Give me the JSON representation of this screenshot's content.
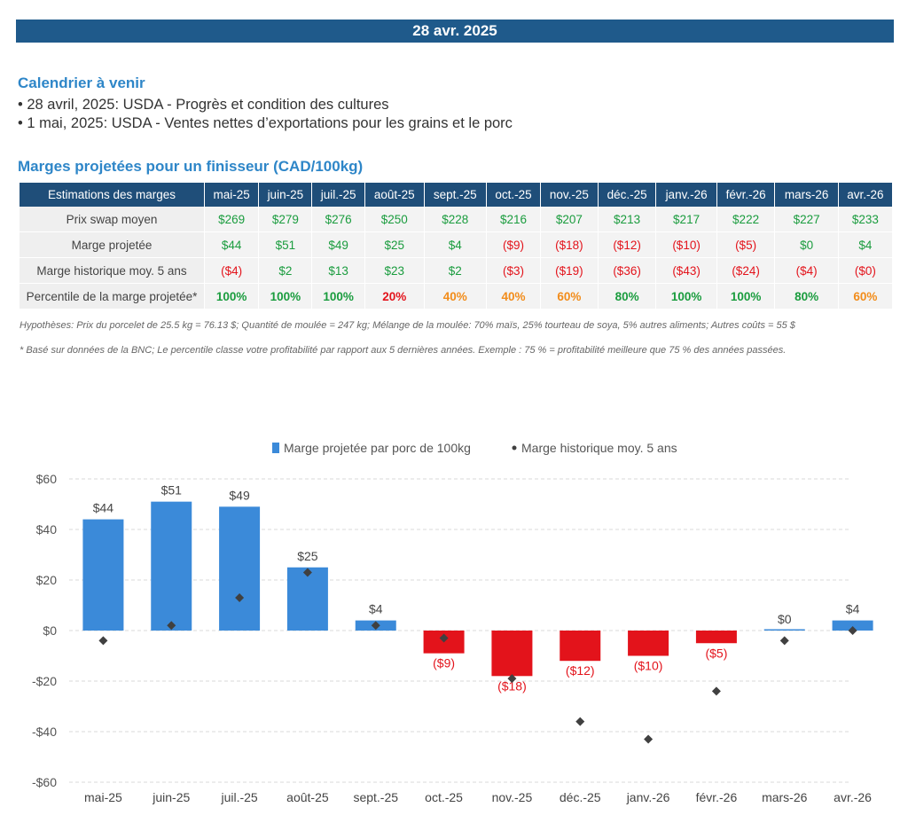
{
  "date_banner": "28 avr. 2025",
  "calendar": {
    "title": "Calendrier à venir",
    "items": [
      "28 avril, 2025: USDA - Progrès et condition des cultures",
      "1 mai, 2025: USDA - Ventes nettes d’exportations pour les grains et le porc"
    ]
  },
  "margins": {
    "title": "Marges projetées pour un finisseur (CAD/100kg)",
    "header": [
      "Estimations des marges",
      "mai-25",
      "juin-25",
      "juil.-25",
      "août-25",
      "sept.-25",
      "oct.-25",
      "nov.-25",
      "déc.-25",
      "janv.-26",
      "févr.-26",
      "mars-26",
      "avr.-26"
    ],
    "rows": [
      {
        "label": "Prix swap moyen",
        "values": [
          "$269",
          "$279",
          "$276",
          "$250",
          "$228",
          "$216",
          "$207",
          "$213",
          "$217",
          "$222",
          "$227",
          "$233"
        ]
      },
      {
        "label": "Marge projetée",
        "values": [
          "$44",
          "$51",
          "$49",
          "$25",
          "$4",
          "($9)",
          "($18)",
          "($12)",
          "($10)",
          "($5)",
          "$0",
          "$4"
        ]
      },
      {
        "label": "Marge historique moy. 5 ans",
        "values": [
          "($4)",
          "$2",
          "$13",
          "$23",
          "$2",
          "($3)",
          "($19)",
          "($36)",
          "($43)",
          "($24)",
          "($4)",
          "($0)"
        ]
      },
      {
        "label": "Percentile de la marge projetée*",
        "values": [
          "100%",
          "100%",
          "100%",
          "20%",
          "40%",
          "40%",
          "60%",
          "80%",
          "100%",
          "100%",
          "80%",
          "60%"
        ]
      }
    ],
    "note_hypotheses": "Hypothèses: Prix du porcelet de 25.5 kg = 76.13 $; Quantité de moulée = 247 kg; Mélange de la moulée: 70% maïs, 25% tourteau de soya, 5% autres aliments; Autres coûts = 55 $",
    "note_bnc": "* Basé sur données de la BNC; Le percentile classe votre profitabilité par rapport aux 5 dernières années. Exemple : 75 % = profitabilité meilleure que 75 % des années passées."
  },
  "colors": {
    "banner": "#1f5a8b",
    "table_header": "#1f4e79",
    "bar_positive": "#3b8ad9",
    "bar_negative": "#e3131b",
    "marker": "#404040",
    "title_blue": "#2e86c8"
  },
  "chart_data": {
    "type": "bar",
    "categories": [
      "mai-25",
      "juin-25",
      "juil.-25",
      "août-25",
      "sept.-25",
      "oct.-25",
      "nov.-25",
      "déc.-25",
      "janv.-26",
      "févr.-26",
      "mars-26",
      "avr.-26"
    ],
    "series": [
      {
        "name": "Marge projetée par porc de 100kg",
        "type": "bar",
        "values": [
          44,
          51,
          49,
          25,
          4,
          -9,
          -18,
          -12,
          -10,
          -5,
          0,
          4
        ],
        "labels": [
          "$44",
          "$51",
          "$49",
          "$25",
          "$4",
          "($9)",
          "($18)",
          "($12)",
          "($10)",
          "($5)",
          "$0",
          "$4"
        ]
      },
      {
        "name": "Marge historique moy. 5 ans",
        "type": "scatter",
        "marker": "diamond",
        "values": [
          -4,
          2,
          13,
          23,
          2,
          -3,
          -19,
          -36,
          -43,
          -24,
          -4,
          0
        ]
      }
    ],
    "yticks": [
      "$60",
      "$40",
      "$20",
      "$0",
      "-$20",
      "-$40",
      "-$60"
    ],
    "ylim": [
      -60,
      60
    ],
    "grid": true,
    "legend": "top"
  }
}
